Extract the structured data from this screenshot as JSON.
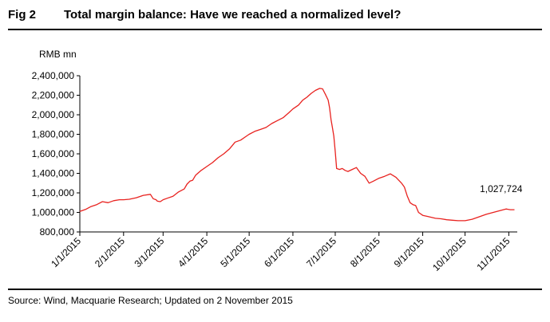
{
  "figure": {
    "label": "Fig 2",
    "title": "Total margin balance: Have we reached a normalized level?",
    "unit_label": "RMB mn",
    "source": "Source: Wind, Macquarie Research; Updated on 2 November 2015"
  },
  "chart_data": {
    "type": "line",
    "title": "Total margin balance: Have we reached a normalized level?",
    "xlabel": "",
    "ylabel": "RMB mn",
    "ylim": [
      800000,
      2400000
    ],
    "yticks": [
      800000,
      1000000,
      1200000,
      1400000,
      1600000,
      1800000,
      2000000,
      2200000,
      2400000
    ],
    "ytick_labels": [
      "800,000",
      "1,000,000",
      "1,200,000",
      "1,400,000",
      "1,600,000",
      "1,800,000",
      "2,000,000",
      "2,200,000",
      "2,400,000"
    ],
    "xlim_days": [
      0,
      310
    ],
    "xticks_days": [
      0,
      31,
      59,
      90,
      120,
      151,
      181,
      212,
      243,
      273,
      304
    ],
    "xtick_labels": [
      "1/1/2015",
      "2/1/2015",
      "3/1/2015",
      "4/1/2015",
      "5/1/2015",
      "6/1/2015",
      "7/1/2015",
      "8/1/2015",
      "9/1/2015",
      "10/1/2015",
      "11/1/2015"
    ],
    "line_color": "#e8221f",
    "series": [
      {
        "name": "Total margin balance",
        "x_days": [
          0,
          4,
          8,
          12,
          16,
          20,
          24,
          28,
          31,
          35,
          40,
          45,
          50,
          52,
          54,
          55,
          57,
          59,
          62,
          66,
          70,
          74,
          76,
          78,
          80,
          82,
          86,
          90,
          94,
          98,
          102,
          106,
          110,
          114,
          118,
          120,
          124,
          128,
          132,
          136,
          140,
          144,
          148,
          151,
          155,
          158,
          161,
          164,
          167,
          170,
          172,
          174,
          176,
          177,
          178,
          179,
          180,
          181,
          182,
          184,
          186,
          188,
          190,
          193,
          196,
          199,
          202,
          205,
          208,
          212,
          216,
          220,
          224,
          228,
          230,
          232,
          234,
          236,
          238,
          240,
          243,
          246,
          249,
          252,
          256,
          260,
          264,
          268,
          273,
          278,
          283,
          288,
          293,
          298,
          302,
          305,
          308
        ],
        "values": [
          1010000,
          1030000,
          1060000,
          1080000,
          1110000,
          1100000,
          1120000,
          1130000,
          1130000,
          1135000,
          1150000,
          1175000,
          1185000,
          1140000,
          1130000,
          1115000,
          1110000,
          1130000,
          1145000,
          1165000,
          1210000,
          1240000,
          1290000,
          1320000,
          1330000,
          1380000,
          1430000,
          1470000,
          1510000,
          1560000,
          1600000,
          1650000,
          1720000,
          1740000,
          1780000,
          1800000,
          1830000,
          1850000,
          1870000,
          1910000,
          1940000,
          1970000,
          2020000,
          2060000,
          2100000,
          2150000,
          2180000,
          2220000,
          2250000,
          2270000,
          2265000,
          2210000,
          2150000,
          2070000,
          1950000,
          1870000,
          1780000,
          1620000,
          1450000,
          1440000,
          1450000,
          1430000,
          1420000,
          1440000,
          1460000,
          1400000,
          1370000,
          1300000,
          1320000,
          1350000,
          1370000,
          1395000,
          1360000,
          1300000,
          1260000,
          1170000,
          1100000,
          1080000,
          1070000,
          1000000,
          970000,
          960000,
          950000,
          940000,
          935000,
          925000,
          920000,
          915000,
          915000,
          930000,
          955000,
          980000,
          1000000,
          1020000,
          1035000,
          1027724,
          1027724
        ]
      }
    ],
    "annotations": [
      {
        "text": "1,027,724",
        "x_day": 308,
        "value": 1027724
      }
    ]
  }
}
